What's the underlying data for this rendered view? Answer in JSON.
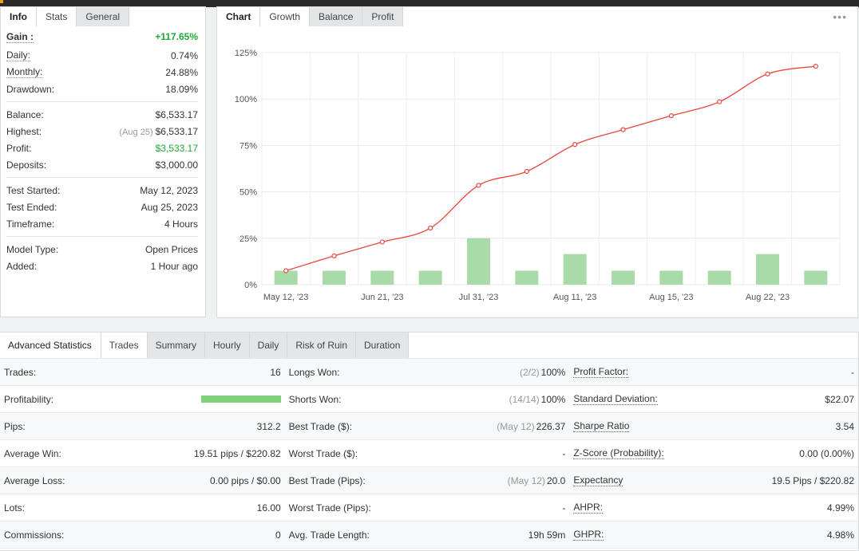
{
  "info_panel": {
    "tabs": [
      "Info",
      "Stats",
      "General"
    ],
    "rows": [
      {
        "label": "Gain :",
        "value": "+117.65%",
        "note": "",
        "style": "gain",
        "dotted": true
      },
      {
        "label": "Daily:",
        "value": "0.74%",
        "note": "",
        "style": "",
        "dotted": true
      },
      {
        "label": "Monthly:",
        "value": "24.88%",
        "note": "",
        "style": "",
        "dotted": true
      },
      {
        "label": "Drawdown:",
        "value": "18.09%",
        "note": "",
        "style": "",
        "dotted": false
      },
      {
        "label": "Balance:",
        "value": "$6,533.17",
        "note": "",
        "style": "",
        "dotted": false,
        "sep": true
      },
      {
        "label": "Highest:",
        "value": "$6,533.17",
        "note": "(Aug 25)",
        "style": "",
        "dotted": false
      },
      {
        "label": "Profit:",
        "value": "$3,533.17",
        "note": "",
        "style": "green",
        "dotted": false
      },
      {
        "label": "Deposits:",
        "value": "$3,000.00",
        "note": "",
        "style": "",
        "dotted": false
      },
      {
        "label": "Test Started:",
        "value": "May 12, 2023",
        "note": "",
        "style": "",
        "dotted": false,
        "sep": true
      },
      {
        "label": "Test Ended:",
        "value": "Aug 25, 2023",
        "note": "",
        "style": "",
        "dotted": false
      },
      {
        "label": "Timeframe:",
        "value": "4 Hours",
        "note": "",
        "style": "",
        "dotted": false
      },
      {
        "label": "Model Type:",
        "value": "Open Prices",
        "note": "",
        "style": "",
        "dotted": false,
        "sep": true
      },
      {
        "label": "Added:",
        "value": "1 Hour ago",
        "note": "",
        "style": "",
        "dotted": false
      }
    ]
  },
  "chart_panel": {
    "tabs": [
      "Chart",
      "Growth",
      "Balance",
      "Profit"
    ],
    "more_icon": "more-dots-icon"
  },
  "chart_data": {
    "type": "line",
    "x": [
      "May 12, '23",
      "Jun 21, '23",
      "Jul 31, '23",
      "Aug 11, '23",
      "Aug 15, '23",
      "Aug 22, '23"
    ],
    "x_tick_labels": [
      "May 12, '23",
      "Jun 21, '23",
      "Jul 31, '23",
      "Aug 11, '23",
      "Aug 15, '23",
      "Aug 22, '23"
    ],
    "y_tick_labels": [
      "0%",
      "25%",
      "50%",
      "75%",
      "100%",
      "125%"
    ],
    "ylim": [
      0,
      125
    ],
    "growth_line": [
      7.5,
      15.5,
      23,
      30.5,
      53.5,
      61,
      75.5,
      83.5,
      91,
      98.5,
      113.5,
      117.65
    ],
    "bars": [
      7.5,
      7.5,
      7.5,
      7.5,
      25,
      7.5,
      16.5,
      7.5,
      7.5,
      7.5,
      16.5,
      7.5
    ],
    "line_color": "#e8463c",
    "bar_color": "#a8dba8",
    "grid": true
  },
  "advanced": {
    "title": "Advanced Statistics",
    "tabs": [
      "Trades",
      "Summary",
      "Hourly",
      "Daily",
      "Risk of Ruin",
      "Duration"
    ],
    "col1": [
      {
        "label": "Trades:",
        "value": "16",
        "note": ""
      },
      {
        "label": "Profitability:",
        "value": "",
        "note": "",
        "bar": 1.0
      },
      {
        "label": "Pips:",
        "value": "312.2",
        "note": ""
      },
      {
        "label": "Average Win:",
        "value": "19.51 pips / $220.82",
        "note": ""
      },
      {
        "label": "Average Loss:",
        "value": "0.00 pips / $0.00",
        "note": ""
      },
      {
        "label": "Lots:",
        "value": "16.00",
        "note": ""
      },
      {
        "label": "Commissions:",
        "value": "0",
        "note": ""
      }
    ],
    "col2": [
      {
        "label": "Longs Won:",
        "value": "100%",
        "note": "(2/2)"
      },
      {
        "label": "Shorts Won:",
        "value": "100%",
        "note": "(14/14)"
      },
      {
        "label": "Best Trade ($):",
        "value": "226.37",
        "note": "(May 12)"
      },
      {
        "label": "Worst Trade ($):",
        "value": "-",
        "note": ""
      },
      {
        "label": "Best Trade (Pips):",
        "value": "20.0",
        "note": "(May 12)"
      },
      {
        "label": "Worst Trade (Pips):",
        "value": "-",
        "note": ""
      },
      {
        "label": "Avg. Trade Length:",
        "value": "19h 59m",
        "note": ""
      }
    ],
    "col3": [
      {
        "label": "Profit Factor:",
        "value": "-",
        "note": ""
      },
      {
        "label": "Standard Deviation:",
        "value": "$22.07",
        "note": ""
      },
      {
        "label": "Sharpe Ratio",
        "value": "3.54",
        "note": ""
      },
      {
        "label": "Z-Score (Probability):",
        "value": "0.00 (0.00%)",
        "note": ""
      },
      {
        "label": "Expectancy",
        "value": "19.5 Pips / $220.82",
        "note": ""
      },
      {
        "label": "AHPR:",
        "value": "4.99%",
        "note": ""
      },
      {
        "label": "GHPR:",
        "value": "4.98%",
        "note": ""
      }
    ]
  }
}
